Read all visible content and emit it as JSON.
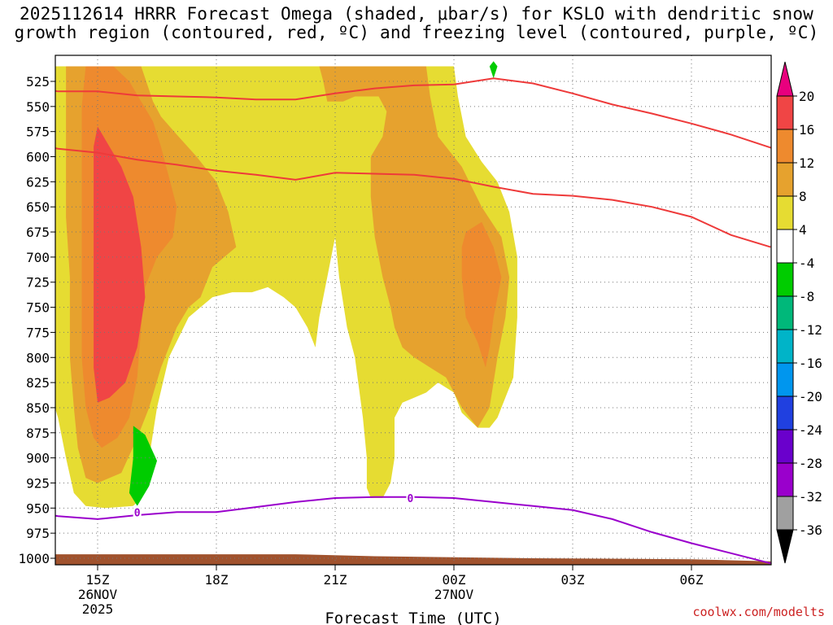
{
  "title_line1": "2025112614 HRRR Forecast Omega (shaded, μbar/s) for KSLO with dendritic snow",
  "title_line2": "growth region (contoured, red, ºC) and freezing level (contoured, purple, ºC)",
  "credit": "coolwx.com/modelts",
  "chart_data": {
    "type": "heatmap",
    "title": "2025112614 HRRR Forecast Omega (shaded, μbar/s) for KSLO with dendritic snow growth region (contoured, red, ºC) and freezing level (contoured, purple, ºC)",
    "xlabel": "Forecast Time (UTC)",
    "ylabel": "",
    "x_unit": "forecast hour (0 = 2025-11-26 14Z)",
    "xlim": [
      0,
      18
    ],
    "ylim": [
      1000,
      510
    ],
    "y_scale": "pressure (hPa), decreasing upward",
    "grid": true,
    "x_ticks": [
      {
        "hour": 1,
        "label": "15Z",
        "label2": "26NOV",
        "label3": "2025"
      },
      {
        "hour": 4,
        "label": "18Z",
        "label2": "",
        "label3": ""
      },
      {
        "hour": 7,
        "label": "21Z",
        "label2": "",
        "label3": ""
      },
      {
        "hour": 10,
        "label": "00Z",
        "label2": "27NOV",
        "label3": ""
      },
      {
        "hour": 13,
        "label": "03Z",
        "label2": "",
        "label3": ""
      },
      {
        "hour": 16,
        "label": "06Z",
        "label2": "",
        "label3": ""
      }
    ],
    "y_ticks": [
      525,
      550,
      575,
      600,
      625,
      650,
      675,
      700,
      725,
      750,
      775,
      800,
      825,
      850,
      875,
      900,
      925,
      950,
      975,
      1000
    ],
    "colorbar": {
      "labels": [
        "20",
        "16",
        "12",
        "8",
        "4",
        "-4",
        "-8",
        "-12",
        "-16",
        "-20",
        "-24",
        "-28",
        "-32",
        "-36"
      ],
      "colors": {
        "gt20": "#e8007e",
        "16_20": "#f04545",
        "12_16": "#ee8a2e",
        "8_12": "#e6a22e",
        "4_8": "#e6dc32",
        "m4_4": "#ffffff",
        "m8_m4": "#00cc00",
        "m12_m8": "#00b87a",
        "m16_m12": "#00b4c8",
        "m20_m16": "#0096ee",
        "m24_m20": "#2040e0",
        "m28_m24": "#6a00cc",
        "m32_m28": "#9a00cc",
        "m36_m32": "#a0a0a0",
        "ltm36": "#000000"
      }
    },
    "shaded_regions": [
      {
        "level": "4_8",
        "polygon": [
          [
            -0.3,
            510
          ],
          [
            0.3,
            510
          ],
          [
            1.0,
            510
          ],
          [
            2.5,
            510
          ],
          [
            3.5,
            510
          ],
          [
            4.5,
            510
          ],
          [
            5.5,
            510
          ],
          [
            6.3,
            510
          ],
          [
            6.6,
            510
          ],
          [
            7.0,
            510
          ],
          [
            7.5,
            510
          ],
          [
            7.8,
            510
          ],
          [
            8.7,
            510
          ],
          [
            9.3,
            510
          ],
          [
            10.0,
            510
          ],
          [
            10.1,
            540
          ],
          [
            10.3,
            580
          ],
          [
            10.7,
            605
          ],
          [
            11.1,
            625
          ],
          [
            11.4,
            655
          ],
          [
            11.6,
            700
          ],
          [
            11.6,
            760
          ],
          [
            11.5,
            820
          ],
          [
            11.1,
            860
          ],
          [
            10.9,
            870
          ],
          [
            10.6,
            870
          ],
          [
            10.2,
            855
          ],
          [
            10.0,
            835
          ],
          [
            9.6,
            825
          ],
          [
            9.3,
            835
          ],
          [
            9.0,
            840
          ],
          [
            8.7,
            845
          ],
          [
            8.5,
            860
          ],
          [
            8.5,
            900
          ],
          [
            8.4,
            925
          ],
          [
            8.2,
            940
          ],
          [
            7.9,
            940
          ],
          [
            7.8,
            930
          ],
          [
            7.8,
            900
          ],
          [
            7.7,
            860
          ],
          [
            7.6,
            830
          ],
          [
            7.5,
            800
          ],
          [
            7.3,
            770
          ],
          [
            7.1,
            720
          ],
          [
            7.0,
            680
          ],
          [
            6.8,
            720
          ],
          [
            6.6,
            760
          ],
          [
            6.5,
            790
          ],
          [
            6.3,
            770
          ],
          [
            6.0,
            750
          ],
          [
            5.7,
            740
          ],
          [
            5.3,
            730
          ],
          [
            4.9,
            735
          ],
          [
            4.4,
            735
          ],
          [
            3.9,
            740
          ],
          [
            3.3,
            760
          ],
          [
            2.8,
            800
          ],
          [
            2.5,
            850
          ],
          [
            2.3,
            900
          ],
          [
            2.1,
            940
          ],
          [
            1.9,
            948
          ],
          [
            1.2,
            950
          ],
          [
            0.7,
            948
          ],
          [
            0.4,
            935
          ],
          [
            0.2,
            900
          ],
          [
            0.0,
            860
          ],
          [
            -0.3,
            820
          ]
        ]
      },
      {
        "level": "8_12",
        "polygon": [
          [
            0.2,
            510
          ],
          [
            2.1,
            510
          ],
          [
            2.4,
            545
          ],
          [
            2.6,
            560
          ],
          [
            3.0,
            578
          ],
          [
            3.5,
            600
          ],
          [
            4.0,
            625
          ],
          [
            4.3,
            655
          ],
          [
            4.5,
            690
          ],
          [
            4.2,
            700
          ],
          [
            3.9,
            710
          ],
          [
            3.6,
            740
          ],
          [
            3.3,
            750
          ],
          [
            3.0,
            770
          ],
          [
            2.6,
            810
          ],
          [
            2.3,
            850
          ],
          [
            2.0,
            880
          ],
          [
            1.6,
            915
          ],
          [
            1.0,
            925
          ],
          [
            0.7,
            920
          ],
          [
            0.5,
            890
          ],
          [
            0.4,
            850
          ],
          [
            0.3,
            800
          ],
          [
            0.3,
            720
          ],
          [
            0.2,
            660
          ],
          [
            0.2,
            560
          ]
        ]
      },
      {
        "level": "8_12",
        "polygon": [
          [
            6.6,
            510
          ],
          [
            7.0,
            510
          ],
          [
            7.3,
            510
          ],
          [
            7.5,
            510
          ],
          [
            8.0,
            510
          ],
          [
            8.7,
            510
          ],
          [
            9.3,
            510
          ],
          [
            9.4,
            540
          ],
          [
            9.6,
            580
          ],
          [
            10.2,
            610
          ],
          [
            10.7,
            650
          ],
          [
            11.2,
            680
          ],
          [
            11.4,
            720
          ],
          [
            11.3,
            760
          ],
          [
            11.1,
            800
          ],
          [
            10.9,
            850
          ],
          [
            10.6,
            870
          ],
          [
            10.4,
            860
          ],
          [
            10.2,
            850
          ],
          [
            9.8,
            820
          ],
          [
            9.4,
            810
          ],
          [
            9.0,
            800
          ],
          [
            8.7,
            790
          ],
          [
            8.5,
            770
          ],
          [
            8.4,
            750
          ],
          [
            8.2,
            720
          ],
          [
            8.0,
            680
          ],
          [
            7.9,
            640
          ],
          [
            7.9,
            600
          ],
          [
            8.2,
            580
          ],
          [
            8.3,
            555
          ],
          [
            8.1,
            540
          ],
          [
            7.5,
            540
          ],
          [
            7.2,
            545
          ],
          [
            7.0,
            545
          ],
          [
            6.8,
            545
          ],
          [
            6.7,
            525
          ]
        ]
      },
      {
        "level": "12_16",
        "polygon": [
          [
            0.7,
            510
          ],
          [
            1.4,
            510
          ],
          [
            1.8,
            525
          ],
          [
            2.1,
            545
          ],
          [
            2.4,
            565
          ],
          [
            2.6,
            590
          ],
          [
            2.8,
            620
          ],
          [
            3.0,
            650
          ],
          [
            2.9,
            680
          ],
          [
            2.5,
            700
          ],
          [
            2.2,
            730
          ],
          [
            2.1,
            770
          ],
          [
            2.0,
            820
          ],
          [
            1.8,
            860
          ],
          [
            1.5,
            880
          ],
          [
            1.1,
            890
          ],
          [
            0.9,
            880
          ],
          [
            0.7,
            850
          ],
          [
            0.6,
            800
          ],
          [
            0.6,
            720
          ],
          [
            0.6,
            660
          ],
          [
            0.6,
            600
          ],
          [
            0.6,
            550
          ]
        ]
      },
      {
        "level": "12_16",
        "polygon": [
          [
            10.3,
            675
          ],
          [
            10.7,
            665
          ],
          [
            11.0,
            690
          ],
          [
            11.2,
            720
          ],
          [
            11.0,
            760
          ],
          [
            10.9,
            790
          ],
          [
            10.8,
            810
          ],
          [
            10.6,
            785
          ],
          [
            10.3,
            760
          ],
          [
            10.2,
            720
          ],
          [
            10.2,
            690
          ]
        ]
      },
      {
        "level": "16_20",
        "polygon": [
          [
            1.0,
            570
          ],
          [
            1.3,
            590
          ],
          [
            1.6,
            610
          ],
          [
            1.9,
            640
          ],
          [
            2.1,
            690
          ],
          [
            2.2,
            740
          ],
          [
            2.0,
            790
          ],
          [
            1.7,
            825
          ],
          [
            1.3,
            840
          ],
          [
            1.0,
            845
          ],
          [
            0.9,
            810
          ],
          [
            0.9,
            740
          ],
          [
            0.9,
            690
          ],
          [
            0.9,
            630
          ],
          [
            0.9,
            590
          ]
        ]
      },
      {
        "level": "m8_m4",
        "polygon": [
          [
            1.9,
            868
          ],
          [
            2.2,
            877
          ],
          [
            2.5,
            903
          ],
          [
            2.3,
            928
          ],
          [
            2.0,
            948
          ],
          [
            1.8,
            935
          ],
          [
            1.9,
            900
          ]
        ]
      },
      {
        "level": "m8_m4",
        "polygon": [
          [
            10.9,
            510
          ],
          [
            11.0,
            505
          ],
          [
            11.1,
            510
          ],
          [
            11.0,
            522
          ]
        ]
      }
    ],
    "dendritic_contours": [
      {
        "name": "upper",
        "points": [
          [
            -1.0,
            528
          ],
          [
            0.0,
            535
          ],
          [
            1.0,
            535
          ],
          [
            2.0,
            539
          ],
          [
            3.0,
            540
          ],
          [
            4.0,
            541
          ],
          [
            5.0,
            543
          ],
          [
            6.0,
            543
          ],
          [
            7.0,
            537
          ],
          [
            8.0,
            532
          ],
          [
            9.0,
            529
          ],
          [
            10.0,
            528
          ],
          [
            11.0,
            522
          ],
          [
            12.0,
            527
          ],
          [
            13.0,
            537
          ],
          [
            14.0,
            548
          ],
          [
            15.0,
            557
          ],
          [
            16.0,
            567
          ],
          [
            17.0,
            578
          ],
          [
            18.0,
            591
          ],
          [
            19.0,
            600
          ]
        ]
      },
      {
        "name": "lower",
        "points": [
          [
            -1.0,
            585
          ],
          [
            0.0,
            592
          ],
          [
            1.0,
            596
          ],
          [
            2.0,
            603
          ],
          [
            3.0,
            608
          ],
          [
            4.0,
            614
          ],
          [
            5.0,
            618
          ],
          [
            6.0,
            623
          ],
          [
            7.0,
            616
          ],
          [
            8.0,
            617
          ],
          [
            9.0,
            618
          ],
          [
            10.0,
            622
          ],
          [
            11.0,
            630
          ],
          [
            12.0,
            637
          ],
          [
            13.0,
            639
          ],
          [
            14.0,
            643
          ],
          [
            15.0,
            650
          ],
          [
            16.0,
            660
          ],
          [
            17.0,
            678
          ],
          [
            18.0,
            690
          ]
        ]
      }
    ],
    "freezing_level": {
      "label": "0",
      "label_points": [
        [
          2.0,
          954
        ],
        [
          8.9,
          940
        ]
      ],
      "points": [
        [
          -1.0,
          952
        ],
        [
          0.0,
          958
        ],
        [
          1.0,
          961
        ],
        [
          2.0,
          957
        ],
        [
          3.0,
          954
        ],
        [
          4.0,
          954
        ],
        [
          5.0,
          949
        ],
        [
          6.0,
          944
        ],
        [
          7.0,
          940
        ],
        [
          8.0,
          939
        ],
        [
          9.0,
          939
        ],
        [
          10.0,
          940
        ],
        [
          11.0,
          944
        ],
        [
          12.0,
          948
        ],
        [
          13.0,
          952
        ],
        [
          14.0,
          961
        ],
        [
          15.0,
          974
        ],
        [
          16.0,
          985
        ],
        [
          17.0,
          995
        ],
        [
          18.0,
          1005
        ]
      ]
    },
    "terrain_top": [
      [
        -1.0,
        996
      ],
      [
        6.0,
        996
      ],
      [
        8.0,
        998
      ],
      [
        12.0,
        1000
      ],
      [
        16.0,
        1001
      ],
      [
        18.0,
        1003
      ]
    ]
  }
}
